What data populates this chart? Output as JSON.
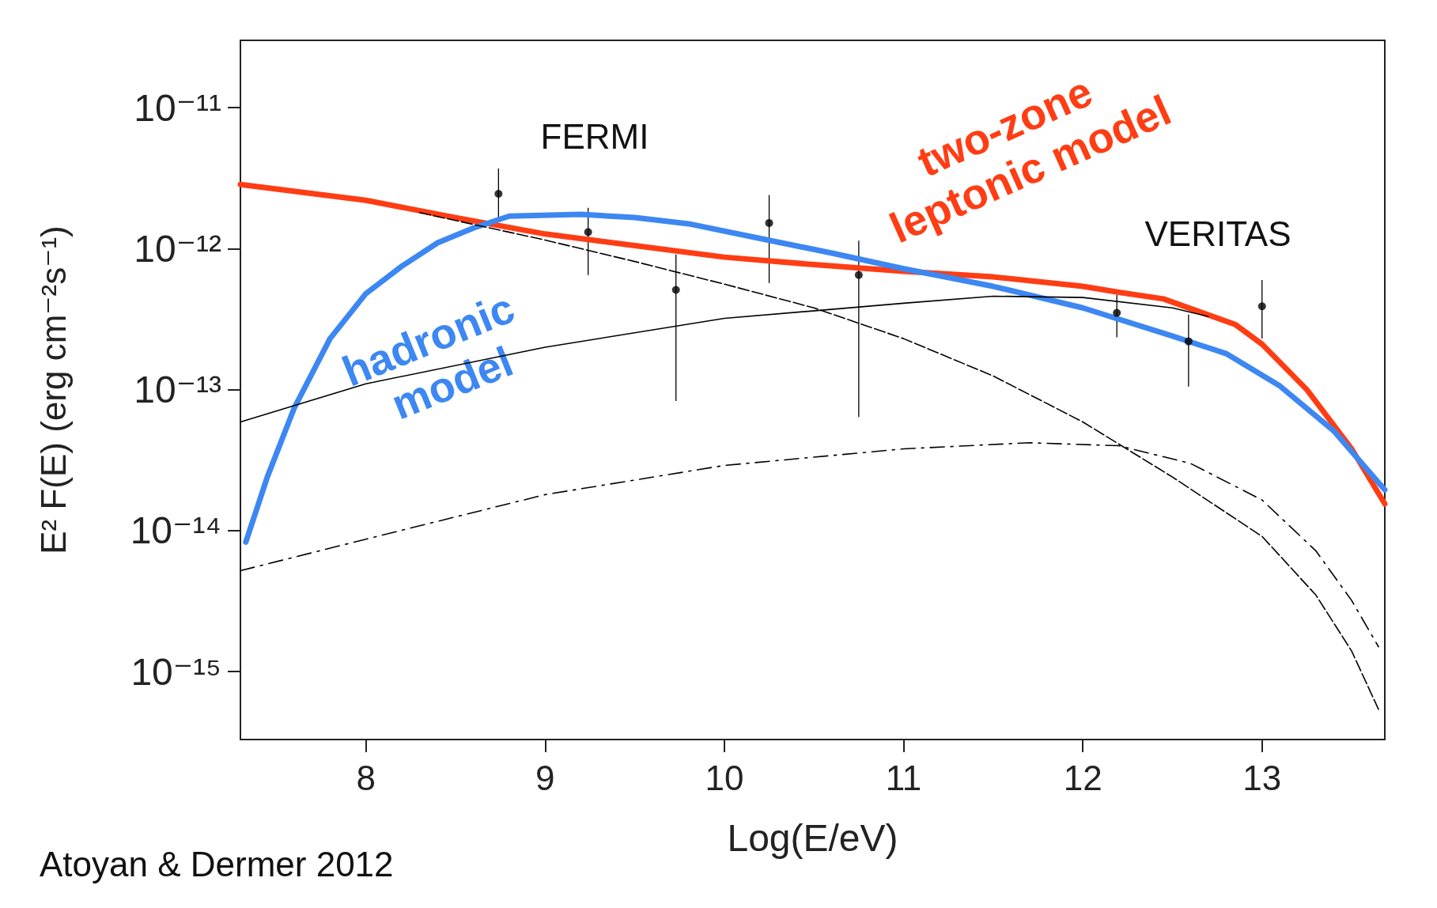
{
  "chart_data": {
    "type": "line",
    "xlabel": "Log(E/eV)",
    "ylabel": "E² F(E) (erg cm⁻²s⁻¹)",
    "log": "y",
    "xlim": [
      7.3,
      13.685
    ],
    "xticks": [
      8,
      9,
      10,
      11,
      12,
      13
    ],
    "ylim": [
      3.3e-16,
      3e-11
    ],
    "yticks": [
      {
        "value": 1e-11,
        "label": "10⁻¹¹"
      },
      {
        "value": 1e-12,
        "label": "10⁻¹²"
      },
      {
        "value": 1e-13,
        "label": "10⁻¹³"
      },
      {
        "value": 1e-14,
        "label": "10⁻¹⁴"
      },
      {
        "value": 1e-15,
        "label": "10⁻¹⁵"
      }
    ],
    "grid": false,
    "legend": false,
    "annotations": [
      "FERMI",
      "VERITAS",
      "Atoyan & Dermer 2012"
    ],
    "series": [
      {
        "line_style": "solid",
        "color": "#000000",
        "x": [
          7.3,
          8,
          9,
          10,
          11,
          11.5,
          12,
          12.5,
          12.7
        ],
        "values": [
          5.9e-14,
          1.1e-13,
          2e-13,
          3.2e-13,
          4.1e-13,
          4.6e-13,
          4.5e-13,
          3.8e-13,
          3.3e-13
        ]
      },
      {
        "line_style": "dashed",
        "color": "#000000",
        "x": [
          8.3,
          9,
          9.5,
          10,
          10.5,
          11,
          11.5,
          12,
          12.5,
          13,
          13.3,
          13.5,
          13.65
        ],
        "values": [
          1.8e-12,
          1.15e-12,
          8.1e-13,
          5.6e-13,
          3.8e-13,
          2.3e-13,
          1.25e-13,
          5.9e-14,
          2.4e-14,
          9.1e-15,
          3.5e-15,
          1.4e-15,
          5.4e-16
        ]
      },
      {
        "line_style": "dashdot",
        "color": "#000000",
        "x": [
          7.3,
          8,
          9,
          10,
          11,
          11.7,
          12.2,
          12.6,
          13,
          13.3,
          13.5,
          13.65
        ],
        "values": [
          5.2e-15,
          8.7e-15,
          1.8e-14,
          2.9e-14,
          3.8e-14,
          4.2e-14,
          4e-14,
          3e-14,
          1.65e-14,
          7.2e-15,
          3.2e-15,
          1.5e-15
        ]
      },
      {
        "name": "two-zone leptonic model",
        "line_style": "solid",
        "color": "#ff3d14",
        "x": [
          7.3,
          8,
          8.5,
          9,
          9.5,
          10,
          10.5,
          11,
          11.5,
          12,
          12.2,
          12.45,
          12.85,
          13,
          13.25,
          13.5,
          13.685
        ],
        "values": [
          2.85e-12,
          2.2e-12,
          1.66e-12,
          1.27e-12,
          1.05e-12,
          8.7e-13,
          7.7e-13,
          6.9e-13,
          6.3e-13,
          5.4e-13,
          4.9e-13,
          4.4e-13,
          2.9e-13,
          2.1e-13,
          1e-13,
          3.8e-14,
          1.55e-14
        ]
      },
      {
        "name": "hadronic model",
        "line_style": "solid",
        "color": "#3d87f2",
        "x": [
          7.33,
          7.45,
          7.6,
          7.8,
          8,
          8.2,
          8.4,
          8.6,
          8.8,
          9.2,
          9.5,
          9.8,
          10.2,
          10.6,
          11,
          11.5,
          12,
          12.5,
          12.8,
          13.1,
          13.4,
          13.685
        ],
        "values": [
          8.3e-15,
          2.4e-14,
          7.4e-14,
          2.3e-13,
          4.8e-13,
          7.5e-13,
          1.1e-12,
          1.4e-12,
          1.7e-12,
          1.75e-12,
          1.66e-12,
          1.5e-12,
          1.18e-12,
          9.3e-13,
          7.2e-13,
          5.4e-13,
          3.8e-13,
          2.4e-13,
          1.8e-13,
          1.06e-13,
          5.1e-14,
          1.95e-14
        ]
      },
      {
        "type": "scatter",
        "marker": "circle",
        "color": "#000000",
        "x": [
          8.74,
          9.24,
          9.73,
          10.25,
          10.75,
          12.19,
          12.59,
          13.0
        ],
        "values": [
          2.45e-12,
          1.31e-12,
          5.1e-13,
          1.52e-12,
          6.5e-13,
          3.5e-13,
          2.2e-13,
          3.9e-13
        ],
        "errors": [
          [
            1.6e-12,
            3.7e-12
          ],
          [
            6.5e-13,
            1.95e-12
          ],
          [
            8.3e-14,
            9.1e-13
          ],
          [
            5.7e-13,
            2.4e-12
          ],
          [
            6.4e-14,
            1.14e-12
          ],
          [
            2.35e-13,
            4.7e-13
          ],
          [
            1.05e-13,
            3.4e-13
          ],
          [
            2.3e-13,
            6e-13
          ]
        ]
      }
    ]
  }
}
